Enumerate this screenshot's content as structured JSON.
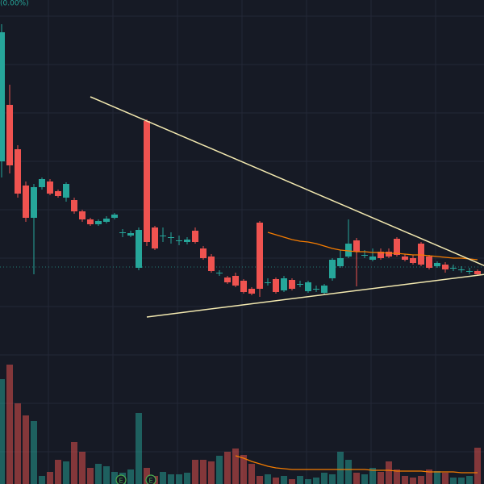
{
  "chart_data": {
    "type": "candlestick",
    "subtitle": "(0.00%)",
    "ylim": [
      0,
      600
    ],
    "y2lim": [
      0,
      600
    ],
    "up_color": "#26a69a",
    "down_color": "#ef5350",
    "open": [
      400,
      470,
      415,
      370,
      330,
      368,
      375,
      363,
      355,
      352,
      338,
      328,
      322,
      325,
      330,
      312,
      308,
      268,
      450,
      318,
      308,
      306,
      302,
      300,
      314,
      292,
      282,
      262,
      256,
      258,
      252,
      242,
      324,
      250,
      254,
      240,
      253,
      248,
      239,
      242,
      237,
      255,
      270,
      282,
      302,
      284,
      278,
      288,
      288,
      304,
      282,
      280,
      298,
      282,
      270,
      272,
      268,
      266,
      264,
      264
    ],
    "high": [
      570,
      495,
      420,
      375,
      372,
      380,
      378,
      365,
      374,
      355,
      340,
      330,
      328,
      332,
      336,
      316,
      314,
      318,
      452,
      320,
      318,
      312,
      308,
      306,
      318,
      295,
      285,
      265,
      258,
      262,
      254,
      244,
      326,
      255,
      256,
      258,
      255,
      252,
      252,
      246,
      248,
      280,
      290,
      328,
      305,
      290,
      292,
      292,
      292,
      306,
      285,
      284,
      300,
      284,
      276,
      275,
      272,
      270,
      268,
      266
    ],
    "low": [
      380,
      385,
      355,
      325,
      260,
      365,
      358,
      355,
      350,
      335,
      325,
      320,
      320,
      323,
      328,
      306,
      306,
      265,
      295,
      290,
      300,
      298,
      296,
      297,
      298,
      278,
      262,
      258,
      248,
      244,
      236,
      234,
      232,
      246,
      236,
      238,
      240,
      244,
      237,
      238,
      235,
      252,
      268,
      280,
      245,
      280,
      276,
      278,
      280,
      282,
      276,
      272,
      270,
      266,
      268,
      262,
      264,
      262,
      260,
      258
    ],
    "close": [
      560,
      395,
      360,
      330,
      368,
      378,
      360,
      357,
      372,
      338,
      328,
      322,
      326,
      329,
      334,
      312,
      311,
      315,
      300,
      292,
      308,
      306,
      302,
      303,
      300,
      280,
      264,
      262,
      250,
      246,
      238,
      236,
      242,
      250,
      238,
      255,
      242,
      248,
      250,
      242,
      246,
      278,
      280,
      298,
      288,
      284,
      282,
      280,
      282,
      284,
      278,
      274,
      272,
      268,
      274,
      266,
      268,
      266,
      264,
      260
    ],
    "volume": [
      130,
      148,
      100,
      85,
      78,
      10,
      15,
      30,
      28,
      52,
      40,
      20,
      25,
      22,
      15,
      14,
      18,
      88,
      20,
      10,
      15,
      12,
      12,
      14,
      30,
      30,
      28,
      35,
      40,
      44,
      36,
      25,
      10,
      12,
      8,
      10,
      6,
      10,
      6,
      8,
      14,
      12,
      40,
      30,
      14,
      12,
      20,
      15,
      28,
      18,
      10,
      8,
      10,
      18,
      16,
      14,
      8,
      8,
      10,
      45
    ],
    "ma": {
      "color": "#f57c00",
      "values": [
        null,
        null,
        null,
        null,
        null,
        null,
        null,
        null,
        null,
        null,
        null,
        null,
        null,
        null,
        null,
        null,
        null,
        null,
        null,
        null,
        null,
        null,
        null,
        null,
        null,
        null,
        null,
        null,
        null,
        null,
        null,
        null,
        null,
        312,
        309,
        306,
        303,
        301,
        300,
        298,
        295,
        292,
        290,
        289,
        288,
        288,
        287,
        287,
        286,
        286,
        285,
        284,
        284,
        283,
        282,
        281,
        280,
        280,
        279,
        278
      ]
    },
    "volume_ma": {
      "color": "#f57c00",
      "values": [
        null,
        null,
        null,
        null,
        null,
        null,
        null,
        null,
        null,
        null,
        null,
        null,
        null,
        null,
        null,
        null,
        null,
        null,
        null,
        null,
        null,
        null,
        null,
        null,
        null,
        null,
        null,
        null,
        null,
        35,
        32,
        28,
        25,
        22,
        20,
        19,
        18,
        18,
        18,
        18,
        18,
        18,
        18,
        18,
        18,
        18,
        17,
        17,
        17,
        16,
        16,
        16,
        16,
        15,
        15,
        15,
        15,
        14,
        14,
        14
      ]
    },
    "trendlines": [
      {
        "color": "#f3e9b0",
        "x": [
          11,
          60
        ],
        "values": [
          480,
          270
        ]
      },
      {
        "color": "#f3e9b0",
        "x": [
          18,
          60
        ],
        "values": [
          207,
          260
        ]
      }
    ],
    "events": [
      "E",
      "E"
    ]
  }
}
